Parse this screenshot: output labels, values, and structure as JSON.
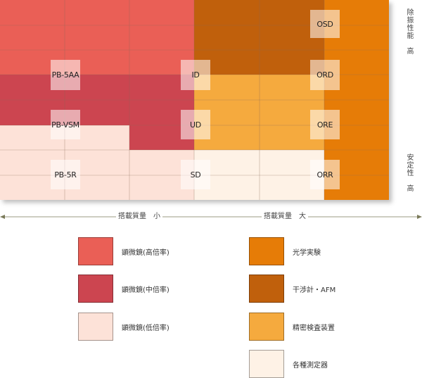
{
  "colors": {
    "scope_high": "#ea5f56",
    "scope_mid": "#cc4550",
    "scope_low": "#fde2d8",
    "optics": "#e67c07",
    "interfero": "#c0600c",
    "precision": "#f5aa3e",
    "various": "#fef2e6",
    "gridline": "#8a6a58"
  },
  "products": {
    "osd": "OSD",
    "ord": "ORD",
    "ore": "ORE",
    "orr": "ORR",
    "pb5aa": "PB-5AA",
    "pbvsm": "PB-VSM",
    "pb5r": "PB-5R",
    "id": "ID",
    "ud": "UD",
    "sd": "SD"
  },
  "axes": {
    "isolation_high": "除振性能　高",
    "stability_high": "安定性　高",
    "payload_small": "搭載質量　小",
    "payload_large": "搭載質量　大"
  },
  "legend": [
    {
      "label": "顕微鏡(高倍率)",
      "color": "#ea5f56"
    },
    {
      "label": "顕微鏡(中倍率)",
      "color": "#cc4550"
    },
    {
      "label": "顕微鏡(低倍率)",
      "color": "#fde2d8"
    },
    {
      "label": "光学実験",
      "color": "#e67c07"
    },
    {
      "label": "干渉計・AFM",
      "color": "#c0600c"
    },
    {
      "label": "精密検査装置",
      "color": "#f5aa3e"
    },
    {
      "label": "各種測定器",
      "color": "#fef2e6"
    }
  ]
}
